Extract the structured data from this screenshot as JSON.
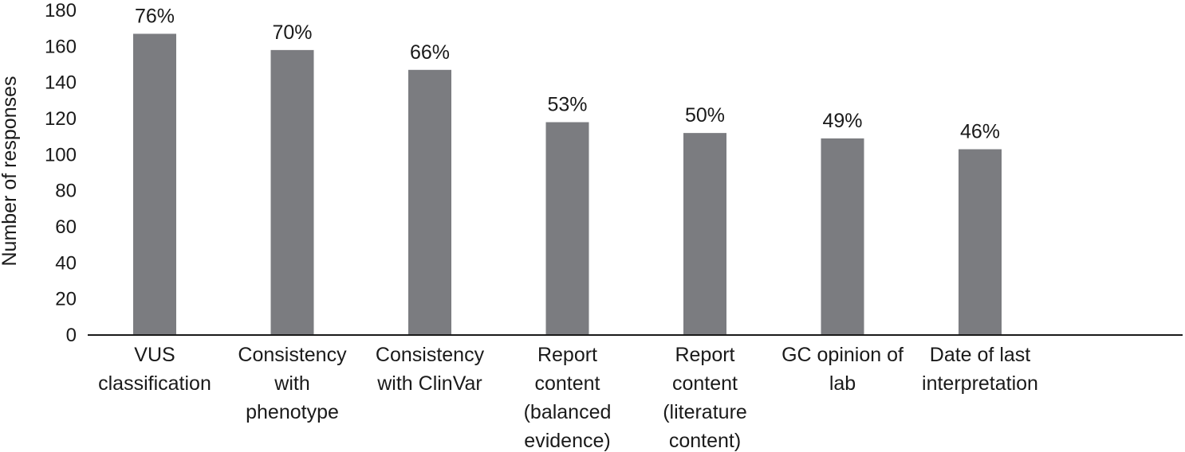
{
  "chart_data": {
    "type": "bar",
    "title": "",
    "xlabel": "",
    "ylabel": "Number of responses",
    "ylim": [
      0,
      180
    ],
    "yticks": [
      0,
      20,
      40,
      60,
      80,
      100,
      120,
      140,
      160,
      180
    ],
    "grid": false,
    "legend": "none",
    "bar_color": "#7b7c80",
    "categories": [
      [
        "VUS",
        "classification"
      ],
      [
        "Consistency",
        "with",
        "phenotype"
      ],
      [
        "Consistency",
        "with ClinVar"
      ],
      [
        "Report",
        "content",
        "(balanced",
        "evidence)"
      ],
      [
        "Report",
        "content",
        "(literature",
        "content)"
      ],
      [
        "GC opinion of",
        "lab"
      ],
      [
        "Date of last",
        "interpretation"
      ]
    ],
    "values": [
      167,
      158,
      147,
      118,
      112,
      109,
      103
    ],
    "data_labels": [
      "76%",
      "70%",
      "66%",
      "53%",
      "50%",
      "49%",
      "46%"
    ]
  }
}
